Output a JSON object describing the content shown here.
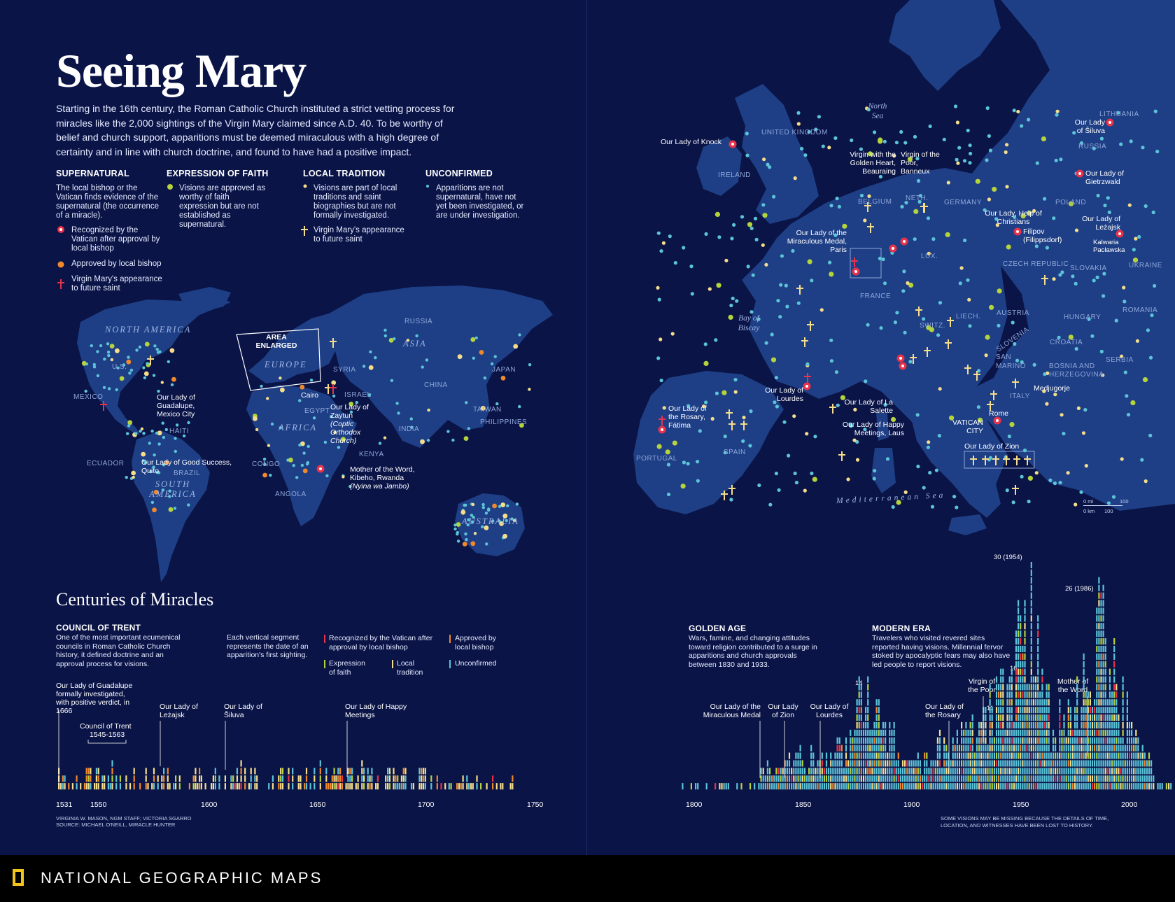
{
  "title": "Seeing Mary",
  "intro": "Starting in the 16th century, the Roman Catholic Church instituted a strict vetting process for miracles like the 2,000 sightings of the Virgin Mary claimed since A.D. 40. To be worthy of belief and church support, apparitions must be deemed miraculous with a high degree of certainty and in line with church doctrine, and found to have had a positive impact.",
  "colors": {
    "background": "#0a1447",
    "land": "#1e3f86",
    "recognized": "#e8334a",
    "approved": "#f0882c",
    "faith": "#b5d33b",
    "local": "#f5dd8a",
    "unconfirmed": "#5cc4d8",
    "saint": "#f5dd8a",
    "frame": "#8fa6d8"
  },
  "legend": {
    "supernatural": {
      "heading": "SUPERNATURAL",
      "desc": "The local bishop or the Vatican finds evidence of the supernatural (the occurrence of a miracle).",
      "items": [
        "Recognized by the Vatican after approval by local bishop",
        "Approved by local bishop",
        "Virgin Mary's appearance to future saint"
      ]
    },
    "faith": {
      "heading": "EXPRESSION OF FAITH",
      "desc": "Visions are approved as worthy of faith expression but are not established as supernatural."
    },
    "tradition": {
      "heading": "LOCAL TRADITION",
      "desc": "Visions are part of local traditions and saint biographies but are not formally investigated.",
      "item": "Virgin Mary's appearance to future saint"
    },
    "unconfirmed": {
      "heading": "UNCONFIRMED",
      "desc": "Apparitions are not supernatural, have not yet been investigated, or are under investigation."
    }
  },
  "world_map": {
    "continents": [
      "NORTH AMERICA",
      "SOUTH AMERICA",
      "EUROPE",
      "AFRICA",
      "ASIA",
      "AUSTRALIA"
    ],
    "countries": [
      "U.S.",
      "MEXICO",
      "HAITI",
      "ECUADOR",
      "BRAZIL",
      "CONGO",
      "ANGOLA",
      "KENYA",
      "EGYPT",
      "ISRAEL",
      "SYRIA",
      "RUSSIA",
      "CHINA",
      "INDIA",
      "JAPAN",
      "TAIWAN",
      "PHILIPPINES"
    ],
    "area_box": "AREA ENLARGED",
    "places": {
      "cairo": "Cairo",
      "guadalupe": "Our Lady of Guadalupe, Mexico City",
      "good_success": "Our Lady of Good Success, Quito",
      "zaytun": "Our Lady of Zaytun",
      "zaytun_note": "(Coptic Orthodox Church)",
      "kibeho": "Mother of the Word, Kibeho, Rwanda",
      "kibeho_note": "(Nyina wa Jambo)"
    }
  },
  "europe_map": {
    "seas": [
      "North Sea",
      "Bay of Biscay",
      "Mediterranean Sea"
    ],
    "countries": [
      "UNITED KINGDOM",
      "IRELAND",
      "BELGIUM",
      "NETH.",
      "LUX.",
      "GERMANY",
      "FRANCE",
      "SWITZ.",
      "LIECH.",
      "AUSTRIA",
      "CZECH REPUBLIC",
      "POLAND",
      "LITHUANIA",
      "RUSSIA",
      "UKRAINE",
      "SLOVAKIA",
      "HUNGARY",
      "ROMANIA",
      "SLOVENIA",
      "CROATIA",
      "BOSNIA AND HERZEGOVINA",
      "SERBIA",
      "SAN MARINO",
      "ITALY",
      "SPAIN",
      "PORTUGAL"
    ],
    "places": {
      "knock": "Our Lady of Knock",
      "beauraing": "Virgin with the Golden Heart, Beauraing",
      "banneux": "Virgin of the Poor, Banneux",
      "paris": "Our Lady of the Miraculous Medal, Paris",
      "lourdes": "Our Lady of Lourdes",
      "fatima": "Our Lady of the Rosary, Fátima",
      "salette": "Our Lady of La Salette",
      "laus": "Our Lady of Happy Meetings, Laus",
      "siluva": "Our Lady of Šiluva",
      "gietrzwald": "Our Lady of Gietrzwald",
      "help": "Our Lady, Help of Christians",
      "filipov": "Filipov",
      "filipov_note": "(Filippsdorf)",
      "lezajsk": "Our Lady of Leżajsk",
      "kalwaria": "Kalwaria Pacławska",
      "medjugorje": "Medjugorje",
      "rome": "Rome",
      "vatican": "VATICAN CITY",
      "zion": "Our Lady of Zion"
    },
    "scale": {
      "mi": "0 mi",
      "km": "0 km",
      "val": "100"
    }
  },
  "timeline": {
    "title": "Centuries of Miracles",
    "council": {
      "heading": "COUNCIL OF TRENT",
      "text": "One of the most important ecumenical councils in Roman Catholic Church history, it defined doctrine and an approval process for visions."
    },
    "segment_note": "Each vertical segment represents the date of an apparition's first sighting.",
    "legend": [
      "Recognized by the Vatican after approval by local bishop",
      "Approved by local bishop",
      "Expression of faith",
      "Local tradition",
      "Unconfirmed"
    ],
    "golden": {
      "heading": "GOLDEN AGE",
      "text": "Wars, famine, and changing attitudes toward religion contributed to a surge in apparitions and church approvals between 1830 and 1933."
    },
    "modern": {
      "heading": "MODERN ERA",
      "text": "Travelers who visited revered sites reported having visions. Millennial fervor stoked by apocalyptic fears may also have led people to report visions."
    },
    "annotations": {
      "guadalupe": "Our Lady of Guadalupe formally investigated, with positive verdict, in 1666",
      "trent": "Council of Trent",
      "trent_years": "1545-1563",
      "lezajsk": "Our Lady of Leżajsk",
      "siluva": "Our Lady of Šiluva",
      "happy": "Our Lady of Happy Meetings",
      "medal": "Our Lady of the Miraculous Medal",
      "zion": "Our Lady of Zion",
      "lourdes": "Our Lady of Lourdes",
      "rosary": "Our Lady of the Rosary",
      "poor": "Virgin of the Poor",
      "word": "Mother of the Word",
      "peak1954": "30 (1954)",
      "peak1986": "26 (1986)",
      "v14": "14",
      "v16": "16",
      "v11": "11"
    },
    "ticks_left": [
      "1531",
      "1550",
      "1600",
      "1650",
      "1700",
      "1750"
    ],
    "ticks_right": [
      "1800",
      "1850",
      "1900",
      "1950",
      "2000"
    ],
    "credit": [
      "VIRGINIA W. MASON, NGM STAFF; VICTORIA SGARRO",
      "SOURCE: MICHAEL O'NEILL, MIRACLE HUNTER"
    ],
    "missing_note": "SOME VISIONS MAY BE MISSING BECAUSE THE DETAILS OF TIME, LOCATION, AND WITNESSES HAVE BEEN LOST TO HISTORY."
  },
  "chart_data": {
    "type": "bar",
    "title": "Centuries of Miracles",
    "xlabel": "",
    "ylabel": "",
    "x": [
      1531,
      1550,
      1600,
      1650,
      1700,
      1750,
      1800,
      1830,
      1850,
      1870,
      1876,
      1900,
      1932,
      1945,
      1954,
      1960,
      1970,
      1980,
      1986,
      1995,
      2010
    ],
    "values": [
      1,
      2,
      1,
      1,
      1,
      1,
      1,
      3,
      5,
      7,
      14,
      4,
      11,
      16,
      30,
      12,
      10,
      17,
      26,
      14,
      3
    ],
    "peaks": [
      {
        "year": 1954,
        "count": 30
      },
      {
        "year": 1986,
        "count": 26
      }
    ]
  },
  "footer": "NATIONAL GEOGRAPHIC MAPS"
}
